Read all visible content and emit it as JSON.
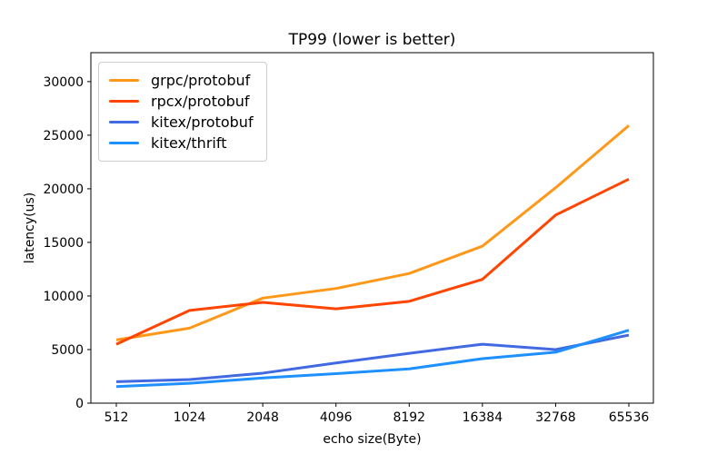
{
  "figure": {
    "background": "#ffffff",
    "text_color": "#000000",
    "spine_color": "#000000"
  },
  "chart_data": {
    "type": "line",
    "title": "TP99 (lower is better)",
    "xlabel": "echo size(Byte)",
    "ylabel": "latency(us)",
    "categories": [
      "512",
      "1024",
      "2048",
      "4096",
      "8192",
      "16384",
      "32768",
      "65536"
    ],
    "series": [
      {
        "name": "grpc/protobuf",
        "color": "#ff9818",
        "values": [
          5900,
          7000,
          9800,
          10700,
          12100,
          14650,
          20100,
          25900
        ]
      },
      {
        "name": "rpcx/protobuf",
        "color": "#ff4500",
        "values": [
          5500,
          8650,
          9400,
          8800,
          9500,
          11550,
          17550,
          20900
        ]
      },
      {
        "name": "kitex/protobuf",
        "color": "#4169e1",
        "values": [
          2000,
          2200,
          2800,
          3750,
          4650,
          5500,
          5000,
          6350
        ]
      },
      {
        "name": "kitex/thrift",
        "color": "#1e90ff",
        "values": [
          1550,
          1850,
          2350,
          2750,
          3200,
          4150,
          4750,
          6800
        ]
      }
    ],
    "yticks": [
      0,
      5000,
      10000,
      15000,
      20000,
      25000,
      30000
    ],
    "ytick_labels": [
      "0",
      "5000",
      "10000",
      "15000",
      "20000",
      "25000",
      "30000"
    ],
    "ylim": [
      0,
      32700
    ],
    "grid": false,
    "legend_position": "upper left",
    "line_width": 3
  }
}
